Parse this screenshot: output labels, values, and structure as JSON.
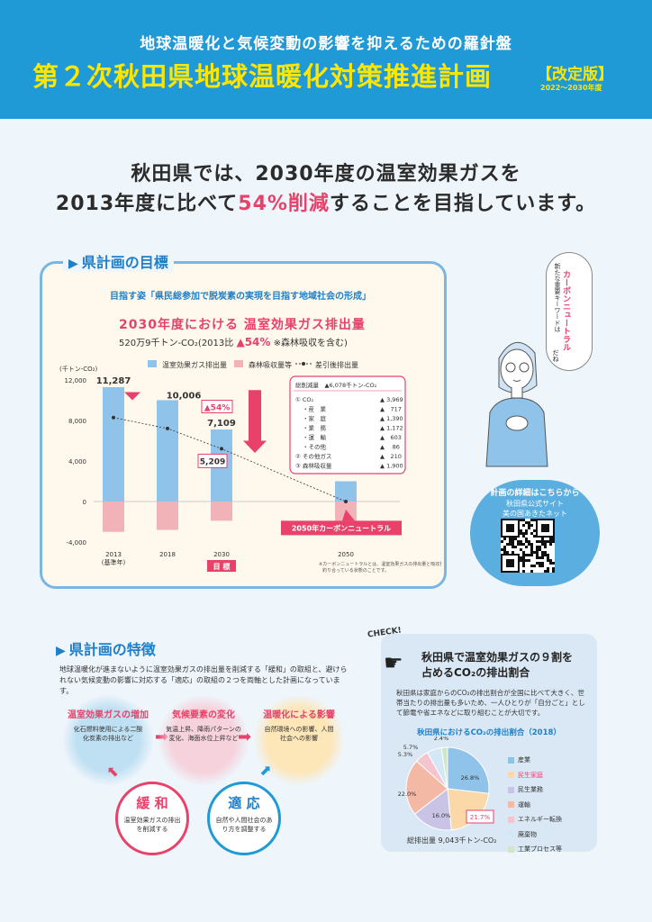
{
  "header": {
    "subtitle": "地球温暖化と気候変動の影響を抑えるための羅針盤",
    "title": "第２次秋田県地球温暖化対策推進計画",
    "badge": "【改定版】",
    "years": "2022〜2030年度"
  },
  "lead": {
    "line1": "秋田県では、2030年度の温室効果ガスを",
    "line2_pre": "2013年度に比べて",
    "line2_highlight": "54%削減",
    "line2_post": "することを目指しています。"
  },
  "goal": {
    "heading": "県計画の目標",
    "vision": "目指す姿「県民総参加で脱炭素の実現を目指す地域社会の形成」",
    "target_title": "2030年度における 温室効果ガス排出量",
    "target_value": "520万9千トン-CO₂(2013比",
    "target_pct": "▲54%",
    "target_note": "※森林吸収を含む)"
  },
  "chart_data": {
    "type": "bar",
    "ylabel": "(千トン-CO₂)",
    "ylim": [
      -4000,
      12000
    ],
    "yticks": [
      "12,000",
      "8,000",
      "4,000",
      "0",
      "-4,000"
    ],
    "categories": [
      "2013\n(基準年)",
      "2018",
      "2030",
      "2050"
    ],
    "category_labels": [
      "2013",
      "2018",
      "2030",
      "2050"
    ],
    "base_year_label": "(基準年)",
    "series": [
      {
        "name": "温室効果ガス排出量",
        "values": [
          11287,
          10006,
          7109,
          2000
        ],
        "color": "#8fc3ea"
      },
      {
        "name": "森林吸収量等",
        "values": [
          -3000,
          -2800,
          -1900,
          -2000
        ],
        "color": "#f2b3b8"
      },
      {
        "name": "差引後排出量",
        "values": [
          8287,
          7206,
          5209,
          0
        ],
        "color": "#333333"
      }
    ],
    "data_labels": [
      "11,287",
      "10,006",
      "7,109",
      "5,209"
    ],
    "arrow_label": "▲54%",
    "target_label": "目 標",
    "neutral_label": "2050年カーボンニュートラル",
    "footnote": "※カーボンニュートラルとは、温室効果ガスの排出量と吸収量が釣り合っている状態のことです。",
    "breakdown": {
      "header": "総削減量　▲6,078千トン-CO₂",
      "rows": [
        {
          "label": "① CO₂",
          "value": "▲ 3,969"
        },
        {
          "label": "・産　業",
          "value": "▲　717"
        },
        {
          "label": "・家　庭",
          "value": "▲ 1,390"
        },
        {
          "label": "・業　務",
          "value": "▲ 1,172"
        },
        {
          "label": "・運　輸",
          "value": "▲　603"
        },
        {
          "label": "・その他",
          "value": "▲　 86"
        },
        {
          "label": "② その他ガス",
          "value": "▲　210"
        },
        {
          "label": "③ 森林吸収量",
          "value": "▲ 1,900"
        }
      ]
    }
  },
  "side": {
    "bubble_text": "新たな重要キーワードは",
    "bubble_keyword": "カーボンニュートラル",
    "bubble_end": "だね",
    "qr_heading": "計画の詳細はこちらから",
    "qr_sub1": "秋田県公式サイト",
    "qr_sub2": "美の国あきたネット"
  },
  "features": {
    "heading": "県計画の特徴",
    "desc": "地球温暖化が進まないように温室効果ガスの排出量を削減する「緩和」の取組と、避けられない気候変動の影響に対応する「適応」の取組の２つを両軸とした計画になっています。",
    "c1_title": "温室効果ガスの増加",
    "c1_text": "化石燃料使用による二酸化炭素の排出など",
    "c2_title": "気候要素の変化",
    "c2_text": "気温上昇、降雨パターンの変化、海面水位上昇など",
    "c3_title": "温暖化による影響",
    "c3_text": "自然環境への影響、人間社会への影響",
    "m_title": "緩 和",
    "m_text": "温室効果ガスの排出を削減する",
    "a_title": "適 応",
    "a_text": "自然や人間社会のあり方を調整する"
  },
  "check": {
    "label": "CHECK!",
    "title1": "秋田県で温室効果ガスの９割を",
    "title2": "占めるCO₂の排出割合",
    "desc": "秋田県は家庭からのCO₂の排出割合が全国に比べて大きく、世帯当たりの排出量も多いため、一人ひとりが「自分ごと」として節電や省エネなどに取り組むことが大切です。",
    "pie_title": "秋田県におけるCO₂の排出割合（2018）",
    "pie_slices": [
      {
        "name": "産業",
        "value": 26.8,
        "label": "26.8%",
        "color": "#8fc3ea"
      },
      {
        "name": "民生家庭",
        "value": 21.7,
        "label": "21.7%",
        "color": "#fbd8a8"
      },
      {
        "name": "民生業務",
        "value": 16.0,
        "label": "16.0%",
        "color": "#c9c3e6"
      },
      {
        "name": "運輸",
        "value": 22.0,
        "label": "22.0%",
        "color": "#f4b9a4"
      },
      {
        "name": "エネルギー転換",
        "value": 5.3,
        "label": "5.3%",
        "color": "#f6c4cf"
      },
      {
        "name": "廃棄物",
        "value": 5.7,
        "label": "5.7%",
        "color": "#d3e8f6"
      },
      {
        "name": "工業プロセス等",
        "value": 2.4,
        "label": "2.4%",
        "color": "#cfe7c8"
      }
    ],
    "legend_house_color": "#e8426b",
    "footer": "総排出量 9,043千トン-CO₂"
  }
}
